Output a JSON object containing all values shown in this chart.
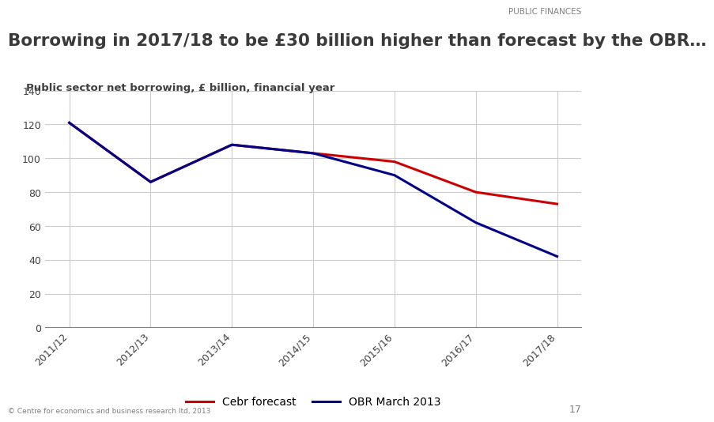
{
  "title": "Borrowing in 2017/18 to be £30 billion higher than forecast by the OBR…",
  "subtitle": "Public sector net borrowing, £ billion, financial year",
  "header_label": "PUBLIC FINANCES",
  "footer_text": "© Centre for economics and business research ltd, 2013",
  "page_number": "17",
  "x_labels": [
    "2011/12",
    "2012/13",
    "2013/14",
    "2014/15",
    "2015/16",
    "2016/17",
    "2017/18"
  ],
  "cebr_forecast": [
    121,
    86,
    108,
    103,
    98,
    80,
    73
  ],
  "obr_march_2013": [
    121,
    86,
    108,
    103,
    90,
    62,
    42
  ],
  "cebr_color": "#cc0000",
  "obr_color": "#00008B",
  "ylim": [
    0,
    140
  ],
  "yticks": [
    0,
    20,
    40,
    60,
    80,
    100,
    120,
    140
  ],
  "background_color": "#ffffff",
  "plot_bg_color": "#ffffff",
  "grid_color": "#cccccc",
  "title_color": "#3a3a3a",
  "subtitle_color": "#404040",
  "header_color": "#808080",
  "legend_labels": [
    "Cebr forecast",
    "OBR March 2013"
  ],
  "line_width": 2.2
}
